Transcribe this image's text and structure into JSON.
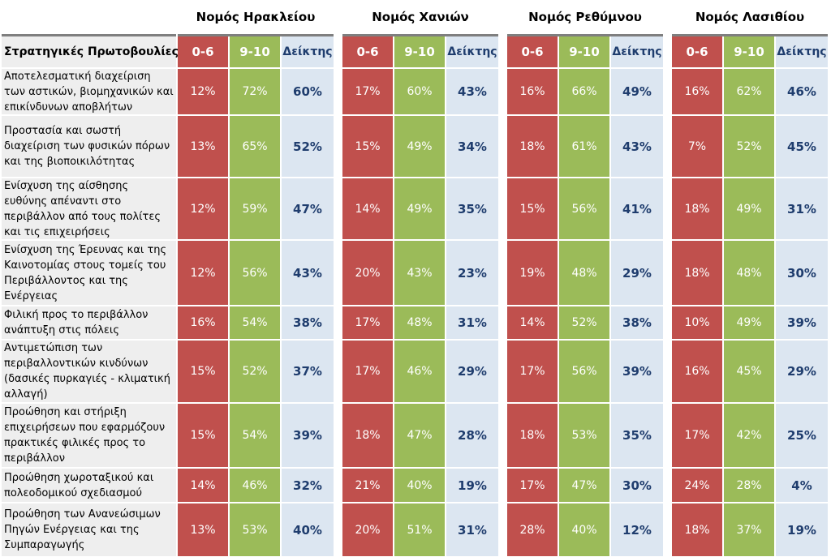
{
  "chart_data": {
    "type": "table",
    "header_label": "Στρατηγικές Πρωτοβουλίες",
    "colors": {
      "low": "#c0504d",
      "high": "#9bbb59",
      "index": "#dce6f1",
      "label": "#eeeeee",
      "index_text": "#1f3d6e"
    },
    "regions": [
      {
        "name": "Νομός Ηρακλείου",
        "columns": [
          "0-6",
          "9-10",
          "Δείκτης"
        ]
      },
      {
        "name": "Νομός Χανιών",
        "columns": [
          "0-6",
          "9-10",
          "Δείκτης"
        ]
      },
      {
        "name": "Νομός Ρεθύμνου",
        "columns": [
          "0-6",
          "9-10",
          "Δείκτης"
        ]
      },
      {
        "name": "Νομός Λασιθίου",
        "columns": [
          "0-6",
          "9-10",
          "Δείκτης"
        ]
      }
    ],
    "rows": [
      {
        "label": "Αποτελεσματική διαχείριση των αστικών, βιομηχανικών και επικίνδυνων αποβλήτων",
        "values": [
          [
            "12%",
            "72%",
            "60%"
          ],
          [
            "17%",
            "60%",
            "43%"
          ],
          [
            "16%",
            "66%",
            "49%"
          ],
          [
            "16%",
            "62%",
            "46%"
          ]
        ]
      },
      {
        "label": "Προστασία και σωστή διαχείριση των φυσικών πόρων και της βιοποικιλότητας",
        "values": [
          [
            "13%",
            "65%",
            "52%"
          ],
          [
            "15%",
            "49%",
            "34%"
          ],
          [
            "18%",
            "61%",
            "43%"
          ],
          [
            "7%",
            "52%",
            "45%"
          ]
        ]
      },
      {
        "label": "Ενίσχυση της αίσθησης ευθύνης απέναντι στο περιβάλλον από τους πολίτες και τις επιχειρήσεις",
        "values": [
          [
            "12%",
            "59%",
            "47%"
          ],
          [
            "14%",
            "49%",
            "35%"
          ],
          [
            "15%",
            "56%",
            "41%"
          ],
          [
            "18%",
            "49%",
            "31%"
          ]
        ]
      },
      {
        "label": "Ενίσχυση της Έρευνας και της Καινοτομίας στους τομείς του Περιβάλλοντος και της Ενέργειας",
        "values": [
          [
            "12%",
            "56%",
            "43%"
          ],
          [
            "20%",
            "43%",
            "23%"
          ],
          [
            "19%",
            "48%",
            "29%"
          ],
          [
            "18%",
            "48%",
            "30%"
          ]
        ]
      },
      {
        "label": "Φιλική προς το περιβάλλον ανάπτυξη στις πόλεις",
        "values": [
          [
            "16%",
            "54%",
            "38%"
          ],
          [
            "17%",
            "48%",
            "31%"
          ],
          [
            "14%",
            "52%",
            "38%"
          ],
          [
            "10%",
            "49%",
            "39%"
          ]
        ]
      },
      {
        "label": "Αντιμετώπιση των περιβαλλοντικών κινδύνων (δασικές πυρκαγιές - κλιματική αλλαγή)",
        "values": [
          [
            "15%",
            "52%",
            "37%"
          ],
          [
            "17%",
            "46%",
            "29%"
          ],
          [
            "17%",
            "56%",
            "39%"
          ],
          [
            "16%",
            "45%",
            "29%"
          ]
        ]
      },
      {
        "label": "Προώθηση και στήριξη επιχειρήσεων που εφαρμόζουν πρακτικές φιλικές προς το περιβάλλον",
        "values": [
          [
            "15%",
            "54%",
            "39%"
          ],
          [
            "18%",
            "47%",
            "28%"
          ],
          [
            "18%",
            "53%",
            "35%"
          ],
          [
            "17%",
            "42%",
            "25%"
          ]
        ]
      },
      {
        "label": "Προώθηση χωροταξικού και πολεοδομικού σχεδιασμού",
        "values": [
          [
            "14%",
            "46%",
            "32%"
          ],
          [
            "21%",
            "40%",
            "19%"
          ],
          [
            "17%",
            "47%",
            "30%"
          ],
          [
            "24%",
            "28%",
            "4%"
          ]
        ]
      },
      {
        "label": "Προώθηση των Ανανεώσιμων Πηγών Ενέργειας και της Συμπαραγωγής",
        "values": [
          [
            "13%",
            "53%",
            "40%"
          ],
          [
            "20%",
            "51%",
            "31%"
          ],
          [
            "28%",
            "40%",
            "12%"
          ],
          [
            "18%",
            "37%",
            "19%"
          ]
        ]
      }
    ]
  }
}
